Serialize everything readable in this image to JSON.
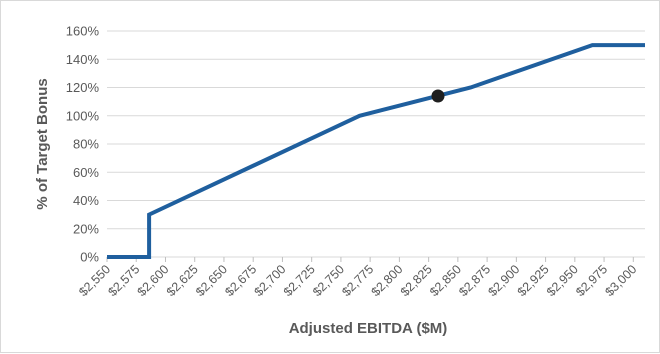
{
  "chart_data": {
    "type": "line",
    "xlabel": "Adjusted EBITDA ($M)",
    "ylabel": "% of Target Bonus",
    "x_ticks": [
      2550,
      2575,
      2600,
      2625,
      2650,
      2675,
      2700,
      2725,
      2750,
      2775,
      2800,
      2825,
      2850,
      2875,
      2900,
      2925,
      2950,
      2975,
      3000
    ],
    "x_tick_labels": [
      "$2,550",
      "$2,575",
      "$2,600",
      "$2,625",
      "$2,650",
      "$2,675",
      "$2,700",
      "$2,725",
      "$2,750",
      "$2,775",
      "$2,800",
      "$2,825",
      "$2,850",
      "$2,875",
      "$2,900",
      "$2,925",
      "$2,950",
      "$2,975",
      "$3,000"
    ],
    "y_ticks": [
      0,
      20,
      40,
      60,
      80,
      100,
      120,
      140,
      160
    ],
    "y_tick_labels": [
      "0%",
      "20%",
      "40%",
      "60%",
      "80%",
      "100%",
      "120%",
      "140%",
      "160%"
    ],
    "xlim": [
      2550,
      3010
    ],
    "ylim": [
      0,
      160
    ],
    "grid": "horizontal",
    "series": [
      {
        "color": "#1f5f9e",
        "points": [
          [
            2550,
            0
          ],
          [
            2586,
            0
          ],
          [
            2586,
            30
          ],
          [
            2766,
            100
          ],
          [
            2861,
            120
          ],
          [
            2965,
            150
          ],
          [
            3010,
            150
          ]
        ]
      }
    ],
    "marker": {
      "x": 2833,
      "y": 114,
      "color": "#1f1f1f"
    }
  }
}
